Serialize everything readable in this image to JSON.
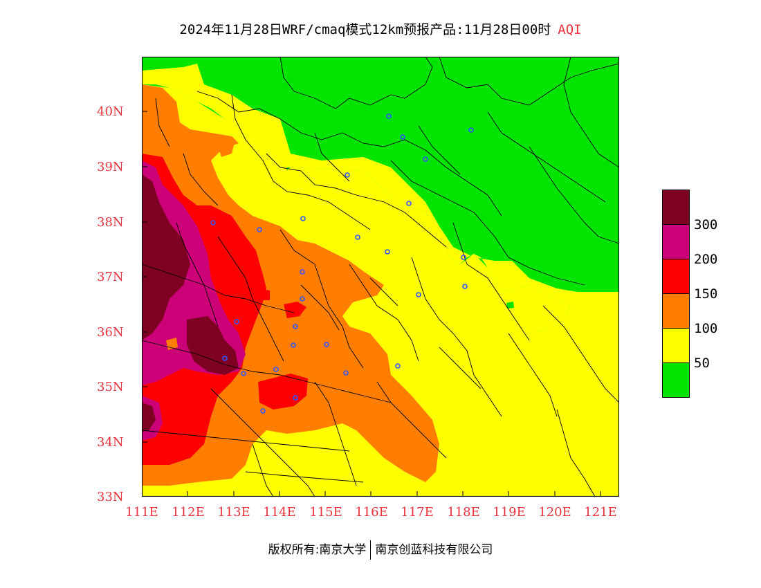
{
  "title": {
    "main": "2024年11月28日WRF/cmaq模式12km预报产品:11月28日00时",
    "variable": "AQI"
  },
  "axes": {
    "y_ticks": [
      "40N",
      "39N",
      "38N",
      "37N",
      "36N",
      "35N",
      "34N",
      "33N"
    ],
    "x_ticks": [
      "111E",
      "112E",
      "113E",
      "114E",
      "115E",
      "116E",
      "117E",
      "118E",
      "119E",
      "120E",
      "121E"
    ],
    "lon_range": [
      111,
      121.4
    ],
    "lat_range": [
      33,
      41
    ]
  },
  "legend": {
    "colors": [
      "#00e400",
      "#ffff00",
      "#ff7e00",
      "#ff0000",
      "#cc0077",
      "#7e0023"
    ],
    "labels": [
      "50",
      "100",
      "150",
      "200",
      "300"
    ]
  },
  "tick_color": "#e8333d",
  "footer": {
    "left": "版权所有:南京大学",
    "right": "南京创蓝科技有限公司"
  }
}
